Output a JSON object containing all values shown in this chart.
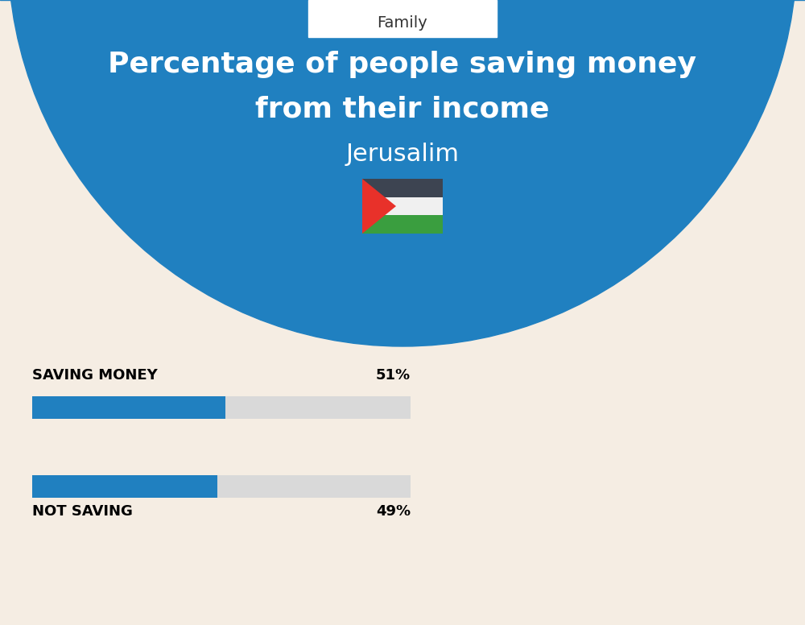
{
  "title_line1": "Percentage of people saving money",
  "title_line2": "from their income",
  "subtitle": "Jerusalim",
  "category_label": "Family",
  "bar1_label": "SAVING MONEY",
  "bar1_value": 51,
  "bar1_pct": "51%",
  "bar2_label": "NOT SAVING",
  "bar2_value": 49,
  "bar2_pct": "49%",
  "bg_color": "#f5ede3",
  "blue_bg": "#2080c0",
  "bar_blue": "#2080c0",
  "bar_gray": "#d9d9d9",
  "title_color": "#ffffff",
  "subtitle_color": "#ffffff",
  "label_color": "#000000",
  "category_box_color": "#ffffff",
  "flag_black": "#3d4451",
  "flag_white": "#f0f0f0",
  "flag_red": "#e8312a",
  "flag_green": "#3a9e3f"
}
